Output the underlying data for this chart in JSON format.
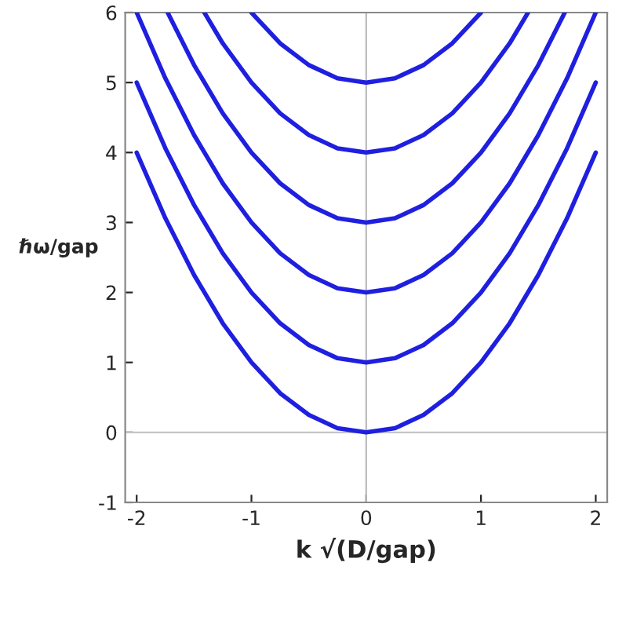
{
  "chart_data": {
    "type": "line",
    "xlabel": "k √(D/gap)",
    "ylabel": "ℏω/gap",
    "series": [
      {
        "color": "#1f1fe0",
        "x": [
          -2,
          -1.75,
          -1.5,
          -1.25,
          -1,
          -0.75,
          -0.5,
          -0.25,
          0,
          0.25,
          0.5,
          0.75,
          1,
          1.25,
          1.5,
          1.75,
          2
        ],
        "values": [
          4,
          3.06,
          2.25,
          1.56,
          1,
          0.56,
          0.25,
          0.06,
          0,
          0.06,
          0.25,
          0.56,
          1,
          1.56,
          2.25,
          3.06,
          4
        ]
      },
      {
        "color": "#1f1fe0",
        "x": [
          -2,
          -1.75,
          -1.5,
          -1.25,
          -1,
          -0.75,
          -0.5,
          -0.25,
          0,
          0.25,
          0.5,
          0.75,
          1,
          1.25,
          1.5,
          1.75,
          2
        ],
        "values": [
          5,
          4.06,
          3.25,
          2.56,
          2,
          1.56,
          1.25,
          1.06,
          1,
          1.06,
          1.25,
          1.56,
          2,
          2.56,
          3.25,
          4.06,
          5
        ]
      },
      {
        "color": "#1f1fe0",
        "x": [
          -2,
          -1.75,
          -1.5,
          -1.25,
          -1,
          -0.75,
          -0.5,
          -0.25,
          0,
          0.25,
          0.5,
          0.75,
          1,
          1.25,
          1.5,
          1.75,
          2
        ],
        "values": [
          6,
          5.06,
          4.25,
          3.56,
          3,
          2.56,
          2.25,
          2.06,
          2,
          2.06,
          2.25,
          2.56,
          3,
          3.56,
          4.25,
          5.06,
          6
        ]
      },
      {
        "color": "#1f1fe0",
        "x": [
          -1.73,
          -1.5,
          -1.25,
          -1,
          -0.75,
          -0.5,
          -0.25,
          0,
          0.25,
          0.5,
          0.75,
          1,
          1.25,
          1.5,
          1.73
        ],
        "values": [
          6,
          5.25,
          4.56,
          4,
          3.56,
          3.25,
          3.06,
          3,
          3.06,
          3.25,
          3.56,
          4,
          4.56,
          5.25,
          6
        ]
      },
      {
        "color": "#1f1fe0",
        "x": [
          -1.41,
          -1.25,
          -1,
          -0.75,
          -0.5,
          -0.25,
          0,
          0.25,
          0.5,
          0.75,
          1,
          1.25,
          1.41
        ],
        "values": [
          6,
          5.56,
          5,
          4.56,
          4.25,
          4.06,
          4,
          4.06,
          4.25,
          4.56,
          5,
          5.56,
          6
        ]
      },
      {
        "color": "#1f1fe0",
        "x": [
          -1,
          -0.75,
          -0.5,
          -0.25,
          0,
          0.25,
          0.5,
          0.75,
          1
        ],
        "values": [
          6,
          5.56,
          5.25,
          5.06,
          5,
          5.06,
          5.25,
          5.56,
          6
        ]
      }
    ],
    "xlim": [
      -2.1,
      2.1
    ],
    "ylim": [
      -1,
      6
    ],
    "xticks": [
      -2,
      -1,
      0,
      1,
      2
    ],
    "yticks": [
      -1,
      0,
      1,
      2,
      3,
      4,
      5,
      6
    ],
    "ref_lines": [
      {
        "axis": "x",
        "value": 0,
        "color": "#bbbbbb"
      },
      {
        "axis": "y",
        "value": 0,
        "color": "#c4c4c4"
      }
    ],
    "grid": false,
    "legend": false,
    "marker": "none",
    "line_style": "solid"
  }
}
